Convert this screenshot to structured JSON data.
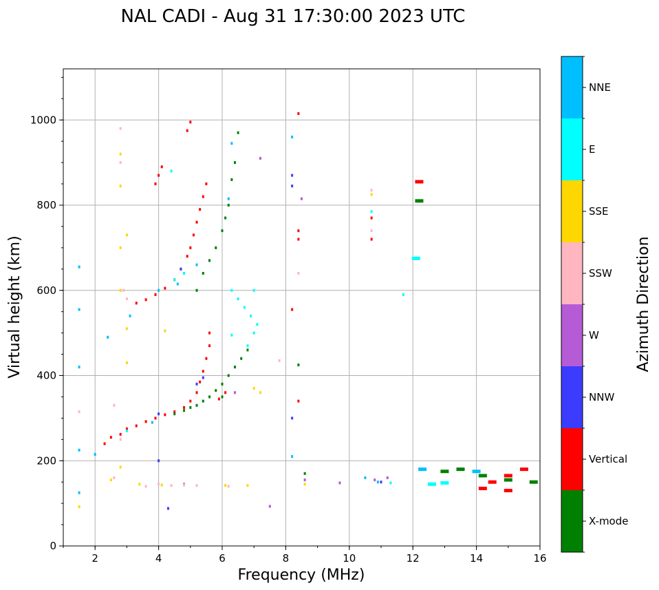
{
  "chart_data": {
    "type": "scatter",
    "title": "NAL CADI - Aug 31 17:30:00 2023 UTC",
    "xlabel": "Frequency (MHz)",
    "ylabel": "Virtual height (km)",
    "xlim": [
      1,
      16
    ],
    "ylim": [
      0,
      1120
    ],
    "xticks": [
      "2",
      "4",
      "6",
      "8",
      "10",
      "12",
      "14",
      "16"
    ],
    "yticks": [
      "0",
      "200",
      "400",
      "600",
      "800",
      "1000"
    ],
    "grid": true,
    "colorbar": {
      "label": "Azimuth Direction",
      "categories": [
        {
          "name": "X-mode",
          "color": "#008000"
        },
        {
          "name": "Vertical",
          "color": "#ff0000"
        },
        {
          "name": "NNW",
          "color": "#3c3cff"
        },
        {
          "name": "W",
          "color": "#b55bd5"
        },
        {
          "name": "SSW",
          "color": "#ffb6c1"
        },
        {
          "name": "SSE",
          "color": "#ffd700"
        },
        {
          "name": "E",
          "color": "#00ffff"
        },
        {
          "name": "NNE",
          "color": "#00bfff"
        }
      ]
    },
    "series": [
      {
        "name": "Vertical",
        "points": [
          [
            2.3,
            240
          ],
          [
            2.5,
            255
          ],
          [
            2.8,
            262
          ],
          [
            3.0,
            275
          ],
          [
            3.3,
            282
          ],
          [
            3.6,
            292
          ],
          [
            3.9,
            300
          ],
          [
            4.2,
            308
          ],
          [
            4.5,
            315
          ],
          [
            4.8,
            325
          ],
          [
            5.0,
            340
          ],
          [
            5.2,
            360
          ],
          [
            5.3,
            385
          ],
          [
            5.4,
            410
          ],
          [
            5.5,
            440
          ],
          [
            5.6,
            470
          ],
          [
            5.6,
            500
          ],
          [
            3.3,
            570
          ],
          [
            3.6,
            578
          ],
          [
            3.9,
            590
          ],
          [
            4.2,
            605
          ],
          [
            4.5,
            625
          ],
          [
            4.7,
            650
          ],
          [
            4.9,
            680
          ],
          [
            5.0,
            700
          ],
          [
            5.1,
            730
          ],
          [
            5.2,
            760
          ],
          [
            5.3,
            790
          ],
          [
            5.4,
            820
          ],
          [
            5.5,
            850
          ],
          [
            3.9,
            850
          ],
          [
            4.0,
            870
          ],
          [
            4.1,
            890
          ],
          [
            4.9,
            975
          ],
          [
            5.0,
            995
          ],
          [
            8.2,
            555
          ],
          [
            8.4,
            720
          ],
          [
            8.4,
            740
          ],
          [
            8.4,
            340
          ],
          [
            8.4,
            1015
          ],
          [
            10.7,
            720
          ],
          [
            10.7,
            770
          ],
          [
            12.2,
            855
          ],
          [
            14.5,
            150
          ],
          [
            15.0,
            165
          ],
          [
            15.5,
            180
          ],
          [
            14.2,
            135
          ],
          [
            15.0,
            130
          ],
          [
            5.9,
            345
          ],
          [
            6.1,
            360
          ]
        ]
      },
      {
        "name": "X-mode",
        "points": [
          [
            4.5,
            310
          ],
          [
            4.8,
            318
          ],
          [
            5.0,
            325
          ],
          [
            5.2,
            330
          ],
          [
            5.4,
            340
          ],
          [
            5.6,
            350
          ],
          [
            5.8,
            365
          ],
          [
            6.0,
            380
          ],
          [
            6.2,
            400
          ],
          [
            6.4,
            420
          ],
          [
            6.6,
            440
          ],
          [
            6.8,
            460
          ],
          [
            5.2,
            600
          ],
          [
            5.4,
            640
          ],
          [
            5.6,
            670
          ],
          [
            5.8,
            700
          ],
          [
            6.0,
            740
          ],
          [
            6.1,
            770
          ],
          [
            6.2,
            800
          ],
          [
            6.3,
            860
          ],
          [
            6.4,
            900
          ],
          [
            6.5,
            970
          ],
          [
            8.6,
            170
          ],
          [
            8.4,
            425
          ],
          [
            12.2,
            810
          ],
          [
            13.0,
            175
          ],
          [
            13.5,
            180
          ],
          [
            14.2,
            165
          ],
          [
            15.0,
            155
          ],
          [
            15.8,
            150
          ],
          [
            6.0,
            350
          ]
        ]
      },
      {
        "name": "NNW",
        "points": [
          [
            4.7,
            650
          ],
          [
            5.2,
            380
          ],
          [
            5.4,
            395
          ],
          [
            8.2,
            300
          ],
          [
            8.2,
            870
          ],
          [
            8.2,
            845
          ],
          [
            4.0,
            200
          ],
          [
            4.3,
            88
          ],
          [
            11.0,
            150
          ],
          [
            4.0,
            310
          ]
        ]
      },
      {
        "name": "W",
        "points": [
          [
            8.6,
            155
          ],
          [
            9.7,
            148
          ],
          [
            10.8,
            155
          ],
          [
            11.2,
            160
          ],
          [
            4.8,
            145
          ],
          [
            7.5,
            93
          ],
          [
            7.2,
            910
          ],
          [
            8.5,
            815
          ],
          [
            6.4,
            360
          ]
        ]
      },
      {
        "name": "SSW",
        "points": [
          [
            2.8,
            980
          ],
          [
            2.8,
            900
          ],
          [
            2.9,
            600
          ],
          [
            3.0,
            580
          ],
          [
            2.6,
            330
          ],
          [
            2.8,
            250
          ],
          [
            3.6,
            140
          ],
          [
            4.0,
            145
          ],
          [
            4.4,
            142
          ],
          [
            4.8,
            143
          ],
          [
            5.2,
            142
          ],
          [
            6.2,
            140
          ],
          [
            1.5,
            315
          ],
          [
            2.6,
            160
          ],
          [
            7.8,
            435
          ],
          [
            10.7,
            835
          ],
          [
            10.7,
            740
          ],
          [
            8.4,
            640
          ]
        ]
      },
      {
        "name": "SSE",
        "points": [
          [
            2.8,
            920
          ],
          [
            2.8,
            845
          ],
          [
            3.0,
            730
          ],
          [
            2.8,
            700
          ],
          [
            2.8,
            600
          ],
          [
            3.0,
            510
          ],
          [
            3.0,
            430
          ],
          [
            7.0,
            370
          ],
          [
            7.2,
            360
          ],
          [
            6.1,
            142
          ],
          [
            6.8,
            142
          ],
          [
            3.4,
            145
          ],
          [
            4.1,
            143
          ],
          [
            1.5,
            92
          ],
          [
            2.5,
            155
          ],
          [
            4.2,
            505
          ],
          [
            10.7,
            825
          ],
          [
            8.6,
            145
          ],
          [
            2.8,
            185
          ]
        ]
      },
      {
        "name": "E",
        "points": [
          [
            4.4,
            880
          ],
          [
            6.3,
            600
          ],
          [
            6.5,
            580
          ],
          [
            6.7,
            560
          ],
          [
            6.9,
            540
          ],
          [
            7.1,
            520
          ],
          [
            7.0,
            500
          ],
          [
            4.5,
            625
          ],
          [
            4.8,
            640
          ],
          [
            6.3,
            495
          ],
          [
            6.8,
            470
          ],
          [
            7.0,
            600
          ],
          [
            10.7,
            785
          ],
          [
            12.1,
            675
          ],
          [
            11.7,
            590
          ],
          [
            13.0,
            148
          ],
          [
            12.6,
            145
          ],
          [
            11.3,
            148
          ],
          [
            3.0,
            270
          ]
        ]
      },
      {
        "name": "NNE",
        "points": [
          [
            1.5,
            655
          ],
          [
            1.5,
            555
          ],
          [
            1.5,
            420
          ],
          [
            2.4,
            490
          ],
          [
            3.1,
            540
          ],
          [
            4.0,
            600
          ],
          [
            4.6,
            615
          ],
          [
            5.2,
            660
          ],
          [
            6.2,
            815
          ],
          [
            6.3,
            945
          ],
          [
            8.2,
            960
          ],
          [
            8.2,
            210
          ],
          [
            10.5,
            160
          ],
          [
            12.3,
            180
          ],
          [
            14.0,
            175
          ],
          [
            1.5,
            225
          ],
          [
            2.0,
            215
          ],
          [
            1.5,
            125
          ],
          [
            3.8,
            290
          ],
          [
            10.9,
            150
          ]
        ]
      }
    ]
  }
}
